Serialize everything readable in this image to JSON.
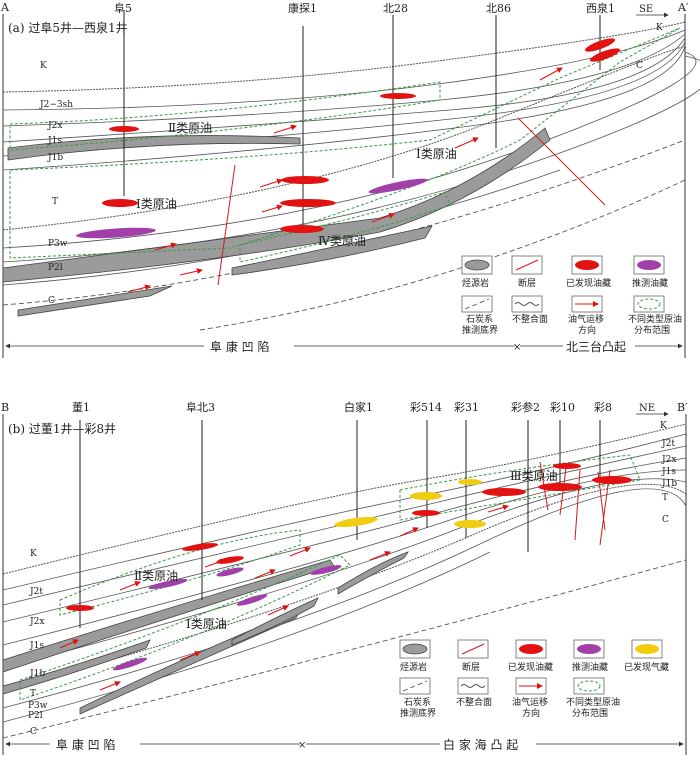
{
  "panel_a": {
    "title": "(a) 过阜5井—西泉1井",
    "end_left": "A",
    "end_right": "A′",
    "direction": "SE",
    "wells": [
      "阜5",
      "康探1",
      "北28",
      "北86",
      "西泉1"
    ],
    "strata": {
      "K_left": "K",
      "K_right": "K",
      "J23sh": "J2−3sh",
      "J2x": "J2x",
      "J1s": "J1s",
      "J1b": "J1b",
      "T": "T",
      "P3w": "P3w",
      "P2l": "P2l",
      "C_left": "C",
      "C_right": "C"
    },
    "oil_classes": [
      "Ⅱ类原油",
      "Ⅰ类原油",
      "Ⅰ类原油",
      "Ⅳ类原油"
    ],
    "region_left": "阜 康 凹 陷",
    "region_right": "北三台凸起"
  },
  "panel_b": {
    "title": "(b) 过董1井—彩8井",
    "end_left": "B",
    "end_right": "B′",
    "direction": "NE",
    "wells": [
      "董1",
      "阜北3",
      "白家1",
      "彩514",
      "彩31",
      "彩参2",
      "彩10",
      "彩8"
    ],
    "strata": {
      "K_left": "K",
      "K_right": "K",
      "J2t_left": "J2t",
      "J2t_right": "J2t",
      "J2x_left": "J2x",
      "J2x_right": "J2x",
      "J1s_left": "J1s",
      "J1s_right": "J1s",
      "J1b_left": "J1b",
      "J1b_right": "J1b",
      "T_left": "T",
      "T_right": "T",
      "P3w": "P3w",
      "P2l": "P2l",
      "C_left": "C",
      "C_right": "C"
    },
    "oil_classes": [
      "Ⅲ类原油",
      "Ⅱ类原油",
      "Ⅰ类原油"
    ],
    "region_left": "阜 康 凹 陷",
    "region_right": "白 家 海 凸 起"
  },
  "legend": {
    "source_rock": "烃源岩",
    "fault": "断层",
    "found_oil": "已发现油藏",
    "inferred_oil": "推测油藏",
    "found_gas": "已发现气藏",
    "c_base_1": "石炭系",
    "c_base_2": "推测底界",
    "unconformity": "不整合面",
    "migration_1": "油气运移",
    "migration_2": "方向",
    "oil_range_1": "不同类型原油",
    "oil_range_2": "分布范围"
  },
  "colors": {
    "oil": "#e31212",
    "inferred_oil": "#a040a8",
    "gas": "#f2cc10",
    "source_rock": "#9b9b9b",
    "range": "#3a9a48"
  }
}
